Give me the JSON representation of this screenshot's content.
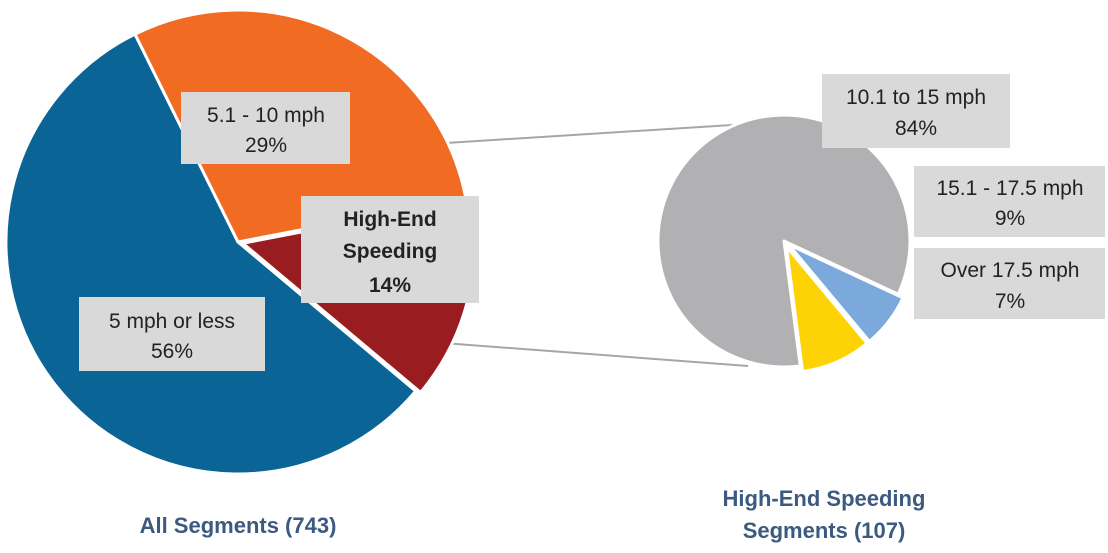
{
  "chart_data": [
    {
      "type": "pie",
      "title": "All Segments (743)",
      "slices": [
        {
          "label": "5 mph or less",
          "value": 56,
          "value_label": "56%",
          "color": "#0b6496"
        },
        {
          "label": "5.1 - 10 mph",
          "value": 29,
          "value_label": "29%",
          "color": "#f26b22"
        },
        {
          "label": "High-End Speeding",
          "value": 14,
          "value_label": "14%",
          "color": "#981c20",
          "label_lines": [
            "High-End",
            "Speeding"
          ],
          "emphasis": true
        }
      ]
    },
    {
      "type": "pie",
      "title_lines": [
        "High-End Speeding",
        "Segments (107)"
      ],
      "slices": [
        {
          "label": "10.1 to 15 mph",
          "value": 84,
          "value_label": "84%",
          "color": "#b1b1b3"
        },
        {
          "label": "15.1 - 17.5 mph",
          "value": 9,
          "value_label": "9%",
          "color": "#fed305"
        },
        {
          "label": "Over 17.5 mph",
          "value": 7,
          "value_label": "7%",
          "color": "#7ba9dc"
        }
      ]
    }
  ]
}
